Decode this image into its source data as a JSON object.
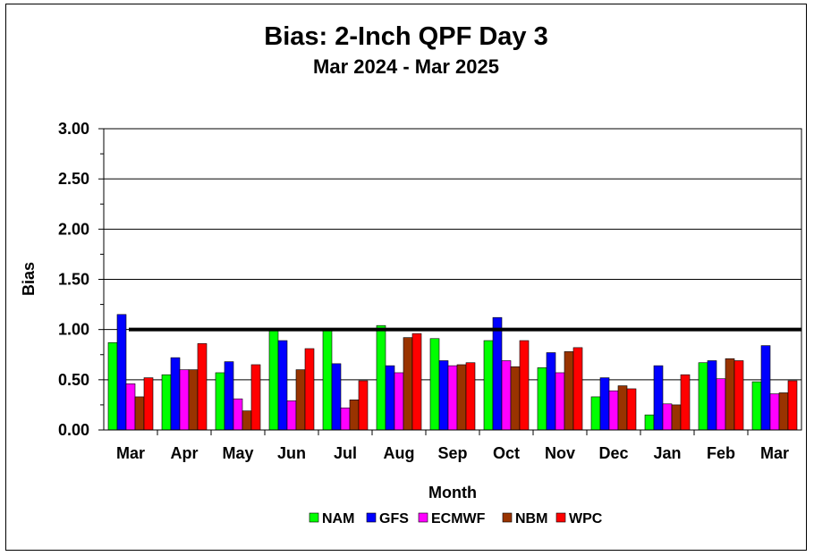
{
  "chart_data": {
    "type": "bar",
    "title": "Bias:  2-Inch QPF Day 3",
    "subtitle": "Mar 2024 - Mar 2025",
    "xlabel": "Month",
    "ylabel": "Bias",
    "ylim": [
      0,
      3
    ],
    "yticks": [
      "0.00",
      "0.50",
      "1.00",
      "1.50",
      "2.00",
      "2.50",
      "3.00"
    ],
    "grid": true,
    "legend_position": "bottom",
    "reference_line": 1.0,
    "categories": [
      "Mar",
      "Apr",
      "May",
      "Jun",
      "Jul",
      "Aug",
      "Sep",
      "Oct",
      "Nov",
      "Dec",
      "Jan",
      "Feb",
      "Mar"
    ],
    "series": [
      {
        "name": "NAM",
        "color": "#00ff00",
        "values": [
          0.87,
          0.55,
          0.57,
          1.0,
          1.0,
          1.04,
          0.91,
          0.89,
          0.62,
          0.33,
          0.15,
          0.67,
          0.48
        ]
      },
      {
        "name": "GFS",
        "color": "#0000ff",
        "values": [
          1.15,
          0.72,
          0.68,
          0.89,
          0.66,
          0.64,
          0.69,
          1.12,
          0.77,
          0.52,
          0.64,
          0.69,
          0.84
        ]
      },
      {
        "name": "ECMWF",
        "color": "#ff00ff",
        "values": [
          0.46,
          0.6,
          0.31,
          0.29,
          0.22,
          0.57,
          0.64,
          0.69,
          0.57,
          0.39,
          0.26,
          0.51,
          0.36
        ]
      },
      {
        "name": "NBM",
        "color": "#993300",
        "values": [
          0.33,
          0.6,
          0.19,
          0.6,
          0.3,
          0.92,
          0.65,
          0.63,
          0.78,
          0.44,
          0.25,
          0.71,
          0.37
        ]
      },
      {
        "name": "WPC",
        "color": "#ff0000",
        "values": [
          0.52,
          0.86,
          0.65,
          0.81,
          0.49,
          0.96,
          0.67,
          0.89,
          0.82,
          0.41,
          0.55,
          0.69,
          0.49
        ]
      }
    ]
  }
}
